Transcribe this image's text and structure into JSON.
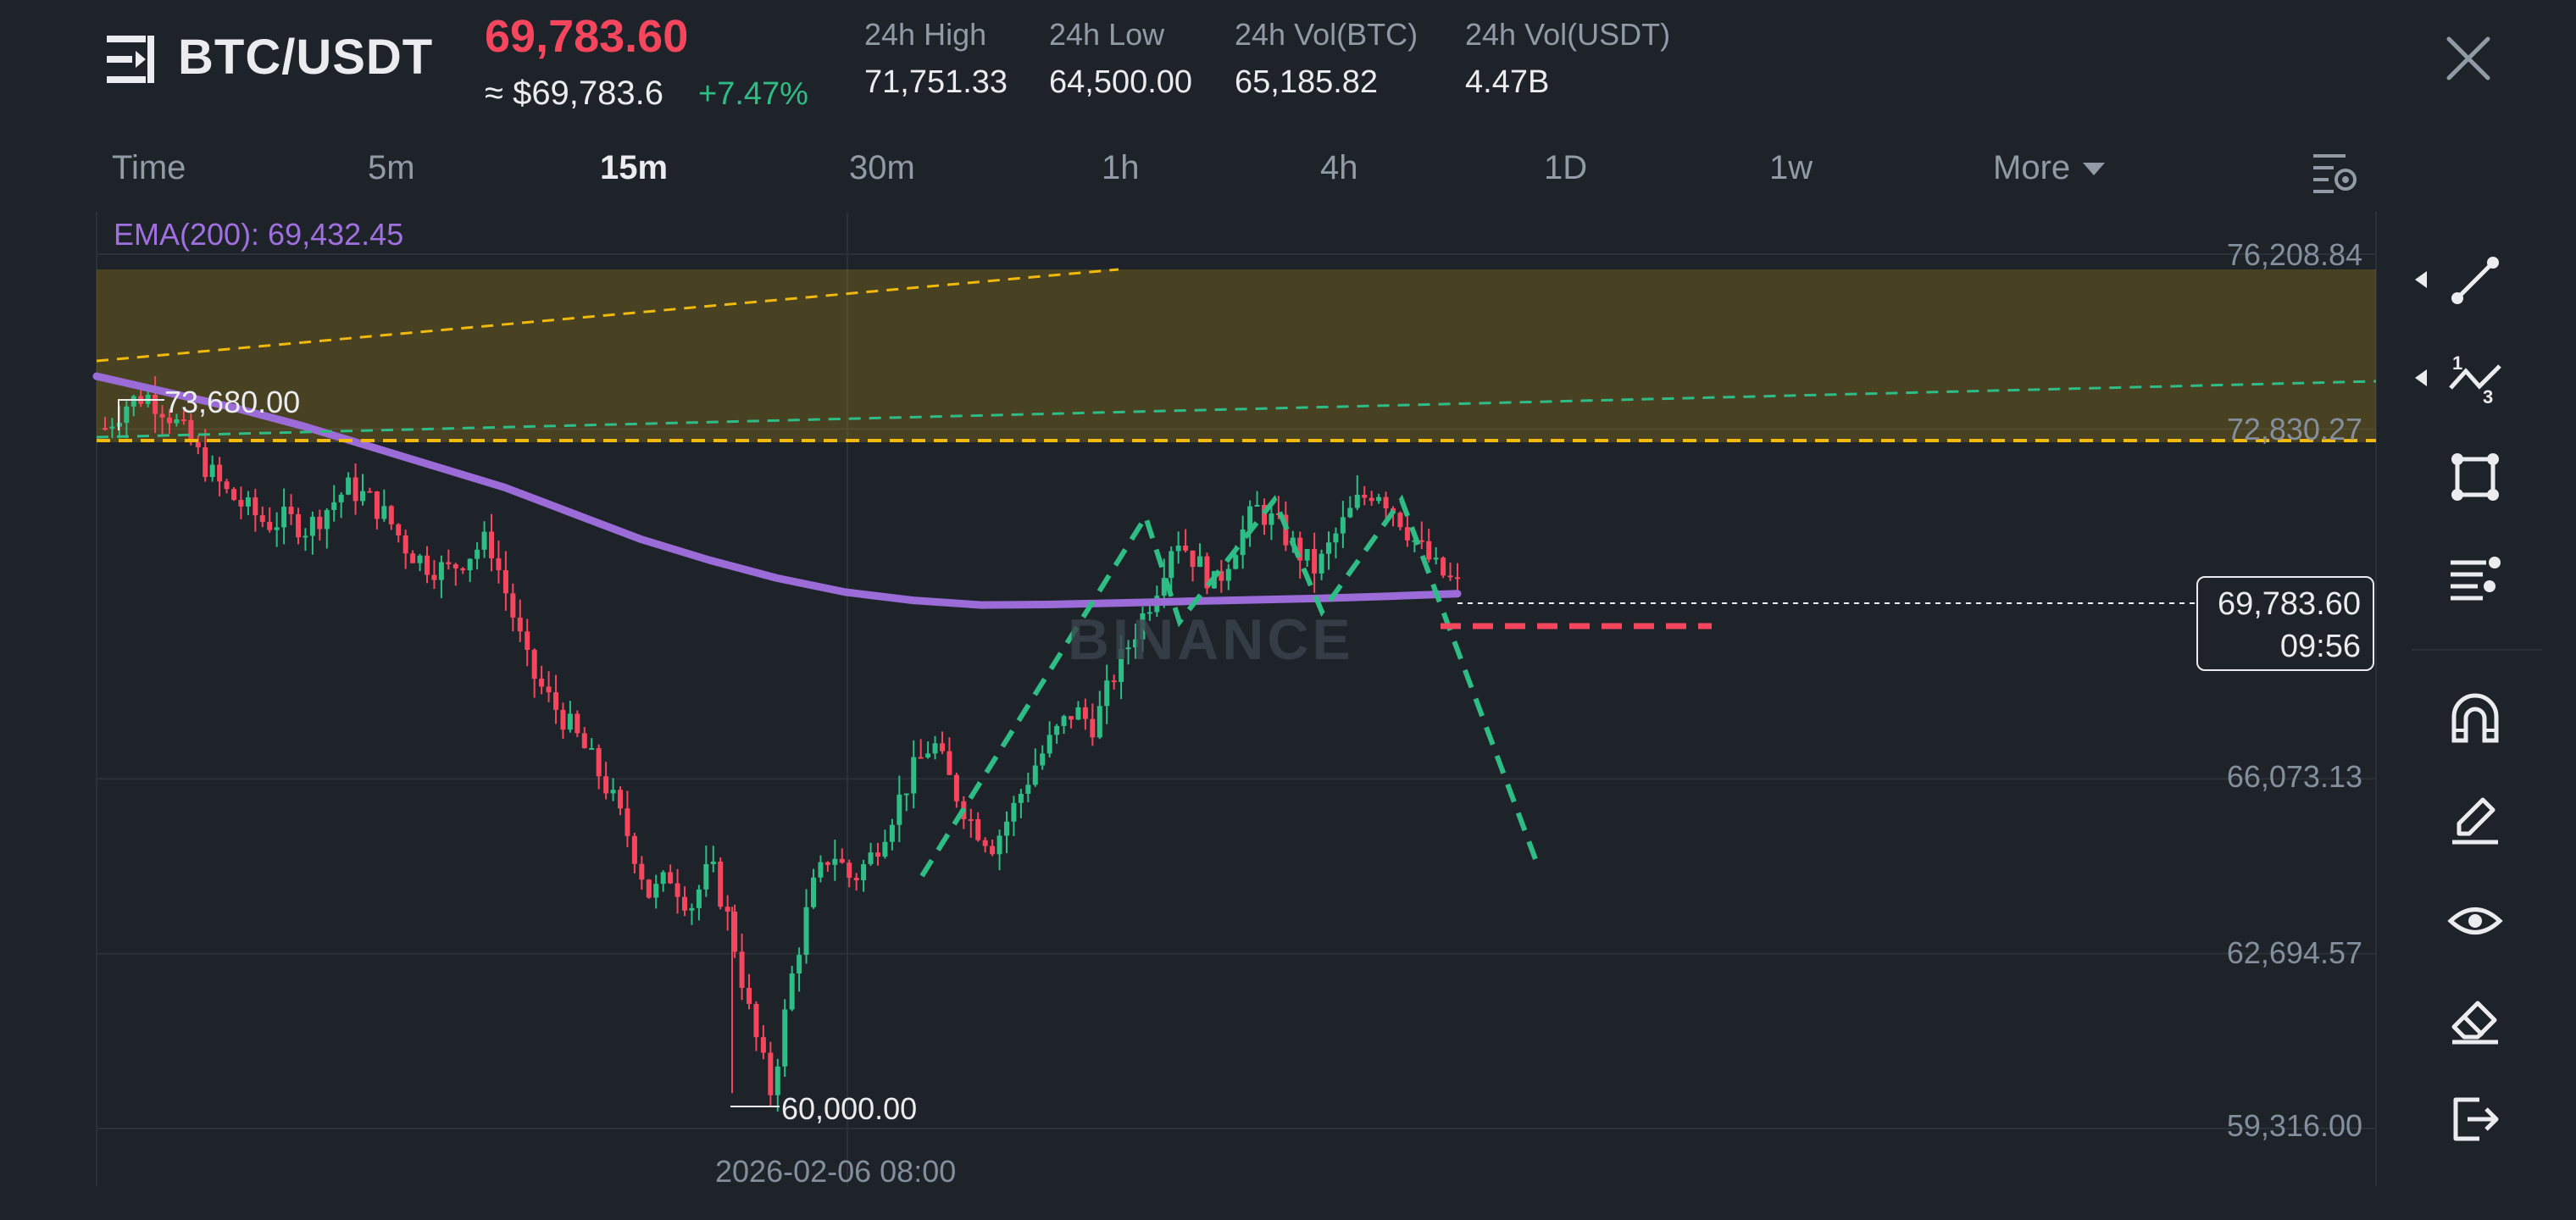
{
  "header": {
    "pair": "BTC/USDT",
    "last_price": "69,783.60",
    "usd_approx": "≈ $69,783.6",
    "change_pct": "+7.47%",
    "stats": [
      {
        "label": "24h High",
        "value": "71,751.33"
      },
      {
        "label": "24h Low",
        "value": "64,500.00"
      },
      {
        "label": "24h Vol(BTC)",
        "value": "65,185.82"
      },
      {
        "label": "24h Vol(USDT)",
        "value": "4.47B"
      }
    ]
  },
  "timeframes": {
    "items": [
      "Time",
      "5m",
      "15m",
      "30m",
      "1h",
      "4h",
      "1D",
      "1w"
    ],
    "active": "15m",
    "more_label": "More"
  },
  "chart": {
    "ema_label": "EMA(200): 69,432.45",
    "y_ticks": [
      "76,208.84",
      "72,830.27",
      "66,073.13",
      "62,694.57",
      "59,316.00"
    ],
    "current_price": "69,783.60",
    "countdown": "09:56",
    "x_label": "2026-02-06 08:00",
    "high_label": "73,680.00",
    "low_label": "60,000.00",
    "watermark": "BINANCE"
  },
  "chart_data": {
    "type": "candlestick",
    "symbol": "BTC/USDT",
    "interval": "15m",
    "y_range": [
      59316.0,
      76208.84
    ],
    "y_ticks": [
      76208.84,
      72830.27,
      66073.13,
      62694.57,
      59316.0
    ],
    "x_label": "2026-02-06 08:00",
    "last_price": 69783.6,
    "session_high": 73680.0,
    "session_low": 60000.0,
    "ema200_latest": 69432.45,
    "ohlc_close_path": [
      72850,
      73300,
      73500,
      73200,
      72700,
      72100,
      71600,
      71300,
      71000,
      71100,
      70900,
      71300,
      71700,
      71500,
      71100,
      70500,
      70200,
      70100,
      70400,
      70700,
      69500,
      68200,
      67600,
      67100,
      66500,
      65800,
      64900,
      63800,
      64200,
      63600,
      64400,
      63200,
      61400,
      60000,
      62200,
      63900,
      64700,
      64100,
      64600,
      65400,
      66200,
      66800,
      65900,
      65200,
      64800,
      65500,
      66300,
      66900,
      67400,
      67100,
      68100,
      68900,
      69700,
      70800,
      70300,
      69800,
      70600,
      71300,
      71000,
      70500,
      70100,
      70800,
      71400,
      71700,
      71200,
      70600,
      70100,
      69783.6
    ],
    "ema200_path": [
      73850,
      73550,
      73250,
      72900,
      72500,
      72100,
      71700,
      71200,
      70700,
      70300,
      69950,
      69680,
      69520,
      69430,
      69440,
      69470,
      69500,
      69530,
      69560,
      69600,
      69650
    ],
    "zones": [
      {
        "from": 72650,
        "to": 76208.84,
        "color": "#f0b90b"
      }
    ],
    "annotations": {
      "red_dashed_level": 69650,
      "pattern": "triple top projection (green dashed)",
      "projection_target": 63750
    },
    "colors": {
      "up": "#2ebd85",
      "down": "#f6465d",
      "ema": "#9b6bd8",
      "zone": "#f0b90b",
      "trend_green": "#2ebd85",
      "trend_yellow": "#f0b90b",
      "level_red": "#f6465d"
    }
  },
  "toolbar": {
    "tools": [
      "trend-line-icon",
      "fibonacci-icon",
      "shape-icon",
      "text-list-icon",
      "magnet-icon",
      "pencil-icon",
      "eye-icon",
      "eraser-icon",
      "exit-icon"
    ]
  },
  "colors": {
    "background": "#1e2329",
    "text": "#eaecef",
    "muted": "#929aa5",
    "up": "#2ebd85",
    "down": "#f6465d"
  }
}
